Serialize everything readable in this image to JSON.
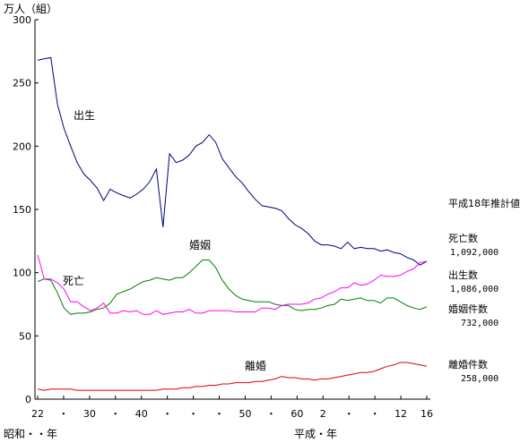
{
  "chart_data": {
    "type": "line",
    "ylabel": "万人（組）",
    "ylim": [
      0,
      300
    ],
    "yticks": [
      "0",
      "50",
      "100",
      "150",
      "200",
      "250",
      "300"
    ],
    "x_tick_labels": [
      "22",
      "・",
      "30",
      "・",
      "40",
      "・",
      "・",
      "・",
      "50",
      "・",
      "60",
      "2",
      "・",
      "・",
      "12",
      "16"
    ],
    "x_era_labels": [
      "昭和・・年",
      "平成・年"
    ],
    "x": [
      22,
      23,
      24,
      25,
      26,
      27,
      28,
      29,
      30,
      31,
      32,
      33,
      34,
      35,
      36,
      37,
      38,
      39,
      40,
      41,
      42,
      43,
      44,
      45,
      46,
      47,
      48,
      49,
      50,
      51,
      52,
      53,
      54,
      55,
      56,
      57,
      58,
      59,
      60,
      61,
      62,
      63,
      64,
      65,
      66,
      67,
      68,
      69,
      70,
      71,
      72,
      73,
      74,
      75,
      76,
      77,
      78,
      79,
      80,
      81
    ],
    "series": [
      {
        "name": "出生",
        "color": "#000080",
        "values": [
          268,
          269,
          270,
          233,
          214,
          200,
          187,
          178,
          173,
          167,
          157,
          166,
          163,
          161,
          159,
          162,
          166,
          172,
          182,
          136,
          194,
          187,
          189,
          193,
          200,
          203,
          209,
          203,
          190,
          183,
          176,
          171,
          164,
          158,
          153,
          152,
          151,
          149,
          143,
          138,
          135,
          131,
          125,
          122,
          122,
          121,
          119,
          124,
          119,
          120,
          119,
          119,
          117,
          118,
          116,
          115,
          112,
          110,
          106,
          109
        ]
      },
      {
        "name": "婚姻",
        "color": "#008000",
        "values": [
          93,
          95,
          94,
          84,
          72,
          67,
          68,
          68,
          69,
          71,
          72,
          76,
          83,
          85,
          87,
          90,
          93,
          94,
          96,
          95,
          94,
          96,
          96,
          100,
          105,
          110,
          110,
          104,
          94,
          87,
          82,
          79,
          78,
          77,
          77,
          77,
          75,
          74,
          74,
          71,
          70,
          71,
          71,
          72,
          74,
          75,
          79,
          78,
          79,
          80,
          78,
          78,
          76,
          80,
          80,
          77,
          74,
          72,
          71,
          73
        ]
      },
      {
        "name": "死亡",
        "color": "#ff00ff",
        "values": [
          114,
          95,
          95,
          92,
          87,
          77,
          77,
          73,
          70,
          72,
          76,
          68,
          68,
          70,
          69,
          70,
          67,
          67,
          70,
          67,
          68,
          69,
          69,
          71,
          68,
          68,
          70,
          70,
          70,
          70,
          69,
          69,
          69,
          69,
          72,
          72,
          71,
          74,
          75,
          75,
          75,
          76,
          79,
          80,
          83,
          85,
          88,
          88,
          92,
          90,
          91,
          94,
          98,
          97,
          97,
          98,
          101,
          103,
          108,
          109
        ]
      },
      {
        "name": "離婚",
        "color": "#e00000",
        "values": [
          8,
          7,
          8,
          8,
          8,
          8,
          7,
          7,
          7,
          7,
          7,
          7,
          7,
          7,
          7,
          7,
          7,
          7,
          7,
          8,
          8,
          8,
          9,
          9,
          10,
          10,
          11,
          11,
          12,
          12,
          13,
          13,
          13,
          14,
          14,
          15,
          16,
          18,
          17,
          17,
          16,
          16,
          15,
          16,
          16,
          17,
          18,
          19,
          20,
          21,
          21,
          22,
          24,
          26,
          27,
          29,
          29,
          28,
          27,
          26
        ]
      }
    ],
    "curve_labels": [
      "出生",
      "婚姻",
      "死亡",
      "離婚"
    ],
    "annotations": {
      "header": "平成18年推計値",
      "items": [
        {
          "label": "死亡数",
          "value": "1,092,000"
        },
        {
          "label": "出生数",
          "value": "1,086,000"
        },
        {
          "label": "婚姻件数",
          "value": "732,000"
        },
        {
          "label": "離婚件数",
          "value": "258,000"
        }
      ]
    },
    "grid": false,
    "legend": "none"
  }
}
